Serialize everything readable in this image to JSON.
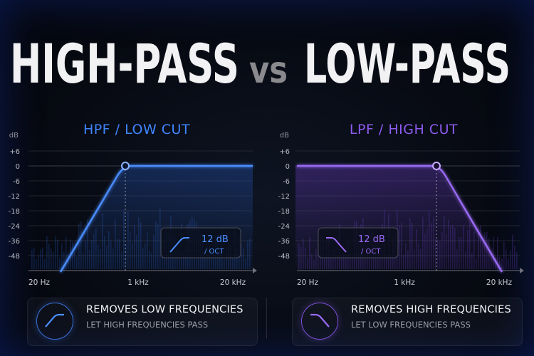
{
  "header": {
    "word_left": "HIGH-PASS",
    "word_vs": "vs",
    "word_right": "LOW-PASS"
  },
  "colors": {
    "hpf": "#3f86ff",
    "lpf": "#8d5bf0",
    "title": "#f2f2f4",
    "vs": "#8a8a8e"
  },
  "panels": [
    {
      "id": "hpf",
      "title": "HPF / LOW CUT",
      "y_unit": "dB",
      "y_ticks": [
        "+6",
        "0",
        "-6",
        "-12",
        "-18",
        "-24",
        "-36",
        "-48"
      ],
      "x_ticks": [
        "20 Hz",
        "1 kHz",
        "20 kHz"
      ],
      "slope_value": "12 dB",
      "slope_unit": "/ OCT",
      "info_main": "REMOVES LOW FREQUENCIES",
      "info_sub": "LET HIGH FREQUENCIES PASS"
    },
    {
      "id": "lpf",
      "title": "LPF / HIGH CUT",
      "y_unit": "dB",
      "y_ticks": [
        "+6",
        "0",
        "-6",
        "-12",
        "-18",
        "-24",
        "-36",
        "-48"
      ],
      "x_ticks": [
        "20 Hz",
        "1 kHz",
        "20 kHz"
      ],
      "slope_value": "12 dB",
      "slope_unit": "/ OCT",
      "info_main": "REMOVES HIGH FREQUENCIES",
      "info_sub": "LET LOW FREQUENCIES PASS"
    }
  ]
}
